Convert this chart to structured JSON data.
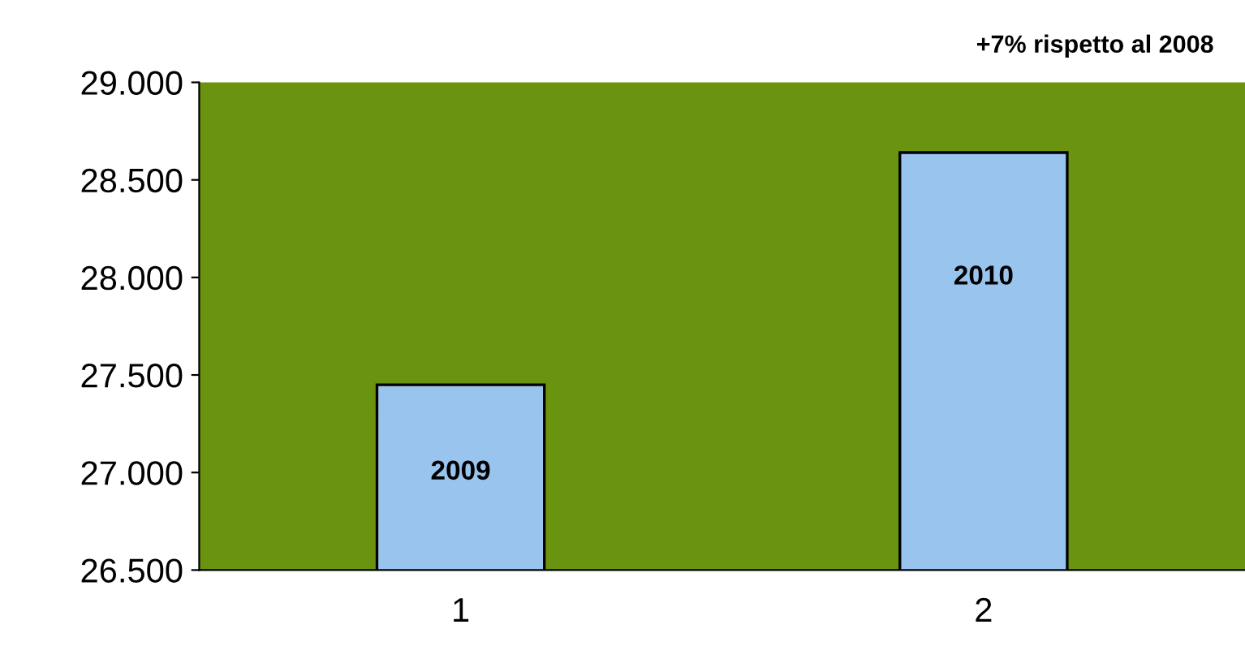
{
  "chart_data": {
    "type": "bar",
    "categories": [
      "1",
      "2"
    ],
    "values": [
      27450,
      28640
    ],
    "color": "#99c4ee",
    "ylim": [
      26500,
      29000
    ],
    "yticks": [
      {
        "value": 26500,
        "label": "26.500"
      },
      {
        "value": 27000,
        "label": "27.000"
      },
      {
        "value": 27500,
        "label": "27.500"
      },
      {
        "value": 28000,
        "label": "28.000"
      },
      {
        "value": 28500,
        "label": "28.500"
      },
      {
        "value": 29000,
        "label": "29.000"
      }
    ],
    "grid": false,
    "annotations": [
      "+7% rispetto al 2008",
      "2009",
      "2010"
    ]
  }
}
